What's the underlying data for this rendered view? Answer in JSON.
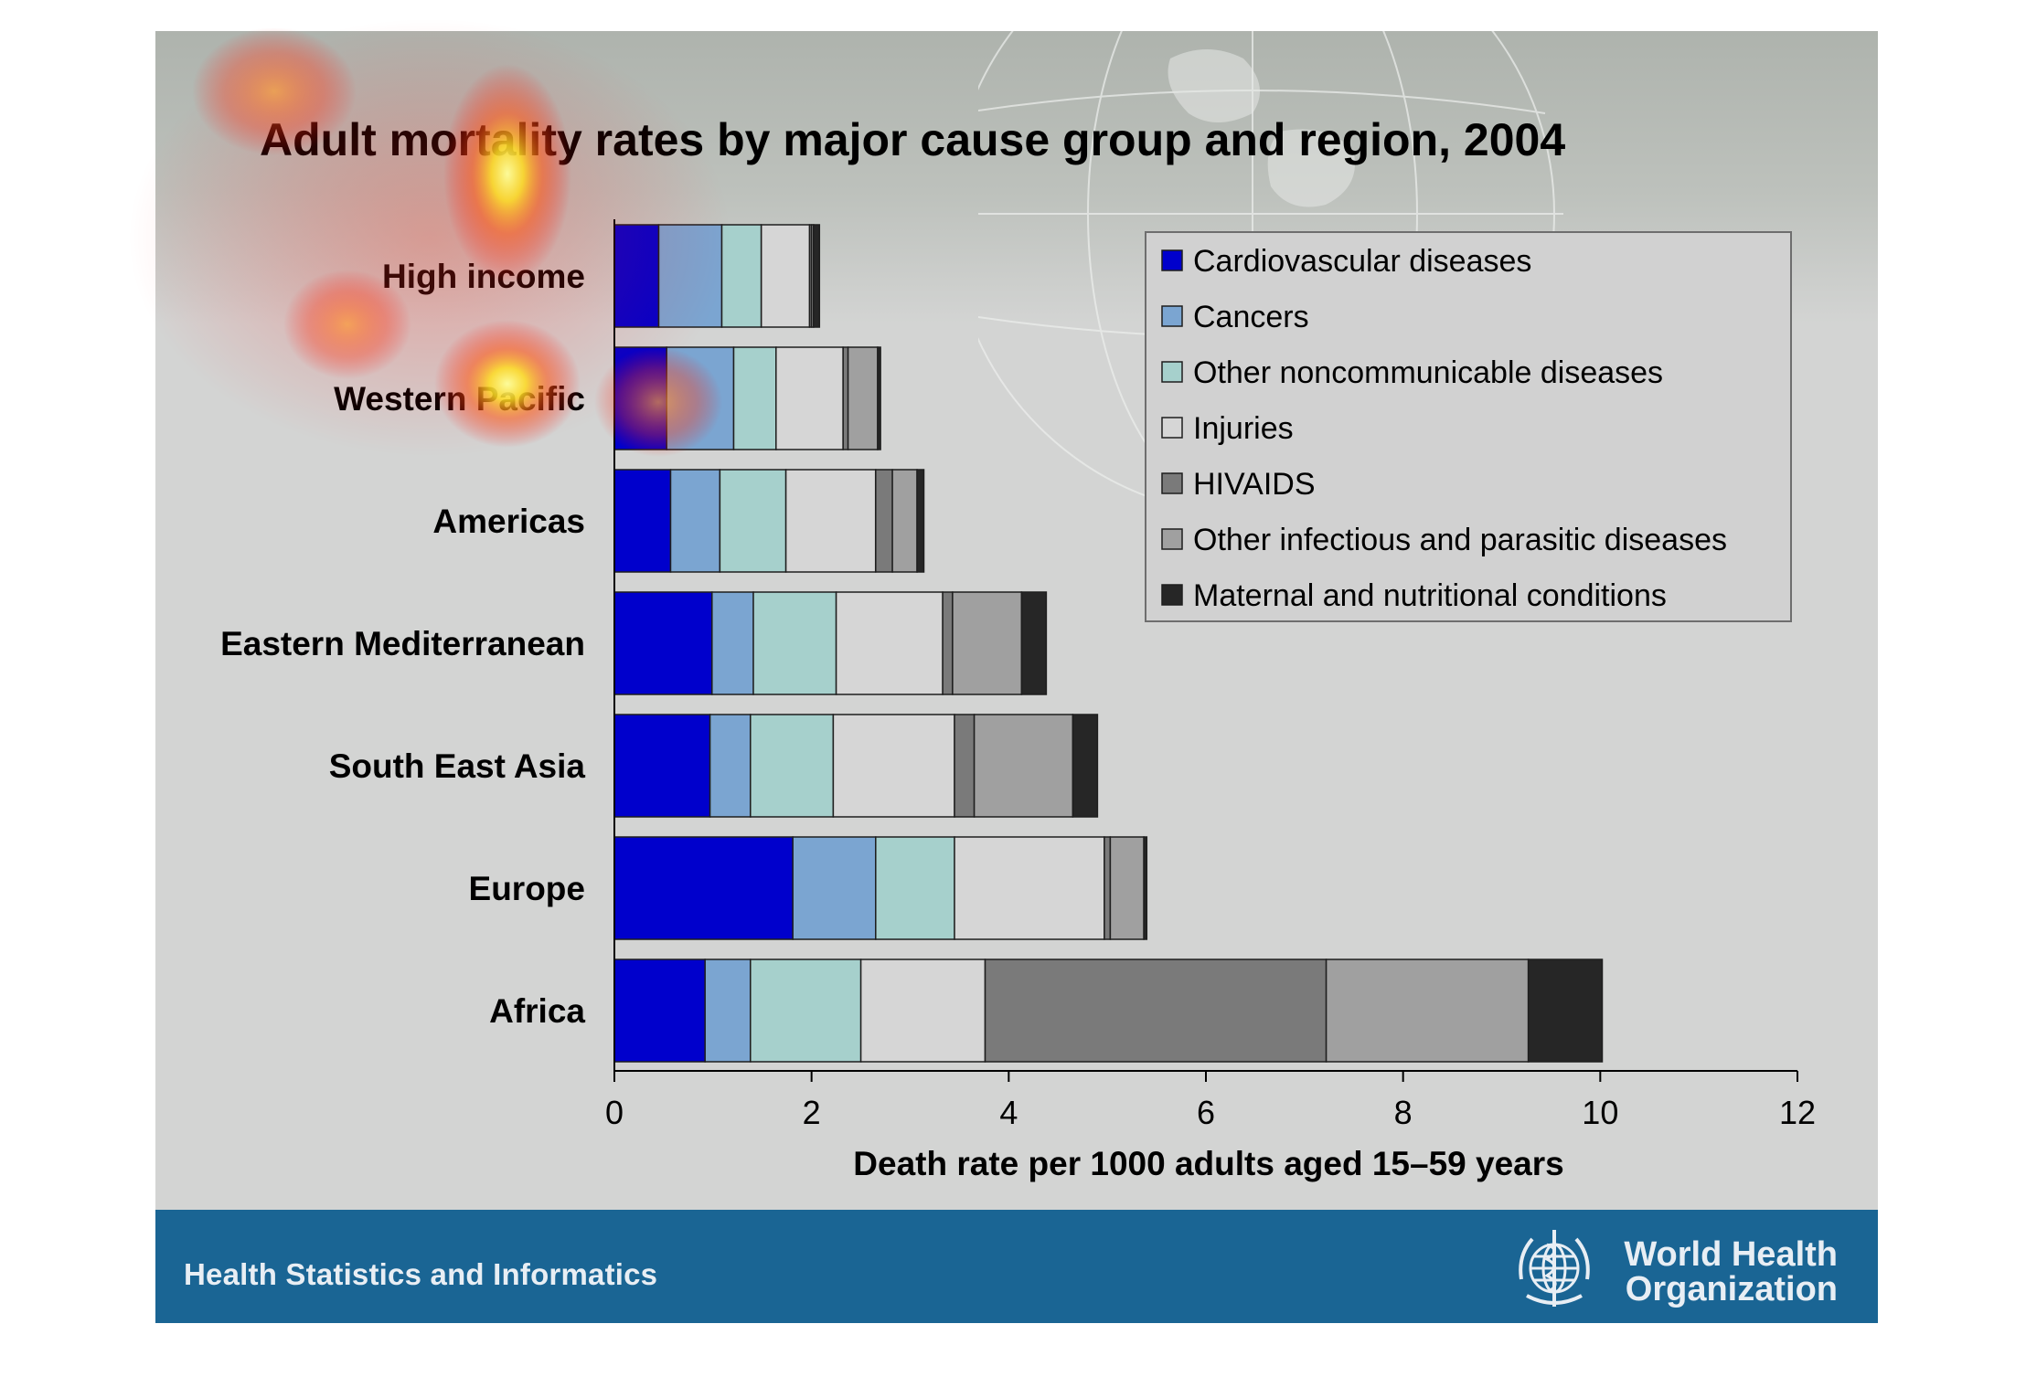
{
  "footer": {
    "label": "Health Statistics and Informatics",
    "org_line1": "World Health",
    "org_line2": "Organization",
    "logo_icon": "who-emblem-icon"
  },
  "colors": {
    "slide_bg": "#d3d4d3",
    "footer_bg": "#1a6594",
    "title_text": "#000000"
  },
  "chart_data": {
    "type": "bar",
    "orientation": "horizontal",
    "stacked": true,
    "title": "Adult mortality rates by major cause group and region, 2004",
    "xlabel": "Death rate per 1000 adults aged 15–59 years",
    "ylabel": "",
    "xlim": [
      0,
      12
    ],
    "xticks": [
      0,
      2,
      4,
      6,
      8,
      10,
      12
    ],
    "grid": false,
    "legend_position": "top-right",
    "categories": [
      "High income",
      "Western Pacific",
      "Americas",
      "Eastern Mediterranean",
      "South East Asia",
      "Europe",
      "Africa"
    ],
    "series": [
      {
        "name": "Cardiovascular diseases",
        "color": "#0000cc",
        "values": [
          0.45,
          0.53,
          0.57,
          0.99,
          0.97,
          1.81,
          0.92
        ]
      },
      {
        "name": "Cancers",
        "color": "#7ba5d1",
        "values": [
          0.64,
          0.68,
          0.5,
          0.42,
          0.41,
          0.84,
          0.46
        ]
      },
      {
        "name": "Other noncommunicable diseases",
        "color": "#a6d0cc",
        "values": [
          0.4,
          0.43,
          0.67,
          0.84,
          0.84,
          0.8,
          1.12
        ]
      },
      {
        "name": "Injuries",
        "color": "#d6d6d6",
        "values": [
          0.49,
          0.68,
          0.91,
          1.08,
          1.23,
          1.52,
          1.26
        ]
      },
      {
        "name": "HIVAIDS",
        "color": "#7a7a7a",
        "values": [
          0.02,
          0.05,
          0.17,
          0.1,
          0.2,
          0.06,
          3.46
        ]
      },
      {
        "name": "Other infectious and parasitic diseases",
        "color": "#a0a0a0",
        "values": [
          0.02,
          0.3,
          0.25,
          0.7,
          1.0,
          0.34,
          2.05
        ]
      },
      {
        "name": "Maternal and nutritional conditions",
        "color": "#262626",
        "values": [
          0.06,
          0.03,
          0.07,
          0.25,
          0.25,
          0.03,
          0.75
        ]
      }
    ]
  }
}
